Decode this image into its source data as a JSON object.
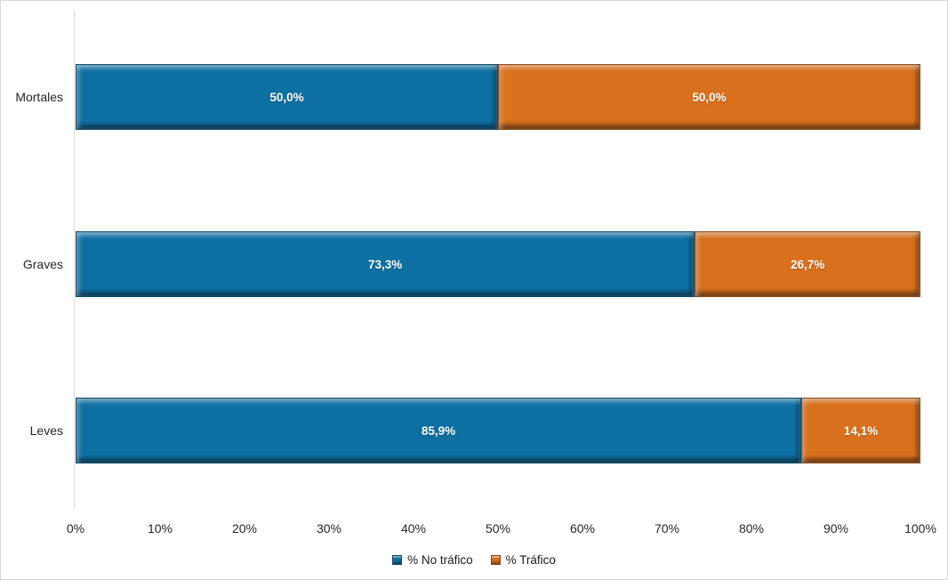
{
  "figure": {
    "background": "#FFFFFF",
    "border_color": "#D9D9D9"
  },
  "chart_data": {
    "type": "bar",
    "variant": "horizontal-stacked",
    "title": "",
    "xlabel": "",
    "ylabel": "",
    "categories": [
      "Mortales",
      "Graves",
      "Leves"
    ],
    "series": [
      {
        "name": "% No tráfico",
        "color": "#0E6FA3",
        "values": [
          50.0,
          73.3,
          85.9
        ],
        "labels": [
          "50,0%",
          "73,3%",
          "85,9%"
        ]
      },
      {
        "name": "% Tráfico",
        "color": "#D9701D",
        "values": [
          50.0,
          26.7,
          14.1
        ],
        "labels": [
          "50,0%",
          "26,7%",
          "14,1%"
        ]
      }
    ],
    "x_axis": {
      "min": 0,
      "max": 100,
      "ticks": [
        "0%",
        "10%",
        "20%",
        "30%",
        "40%",
        "50%",
        "60%",
        "70%",
        "80%",
        "90%",
        "100%"
      ]
    },
    "grid": false,
    "legend": {
      "position": "bottom",
      "entries": [
        "% No tráfico",
        "% Tráfico"
      ]
    },
    "data_label_color": "#FFFFFF"
  }
}
